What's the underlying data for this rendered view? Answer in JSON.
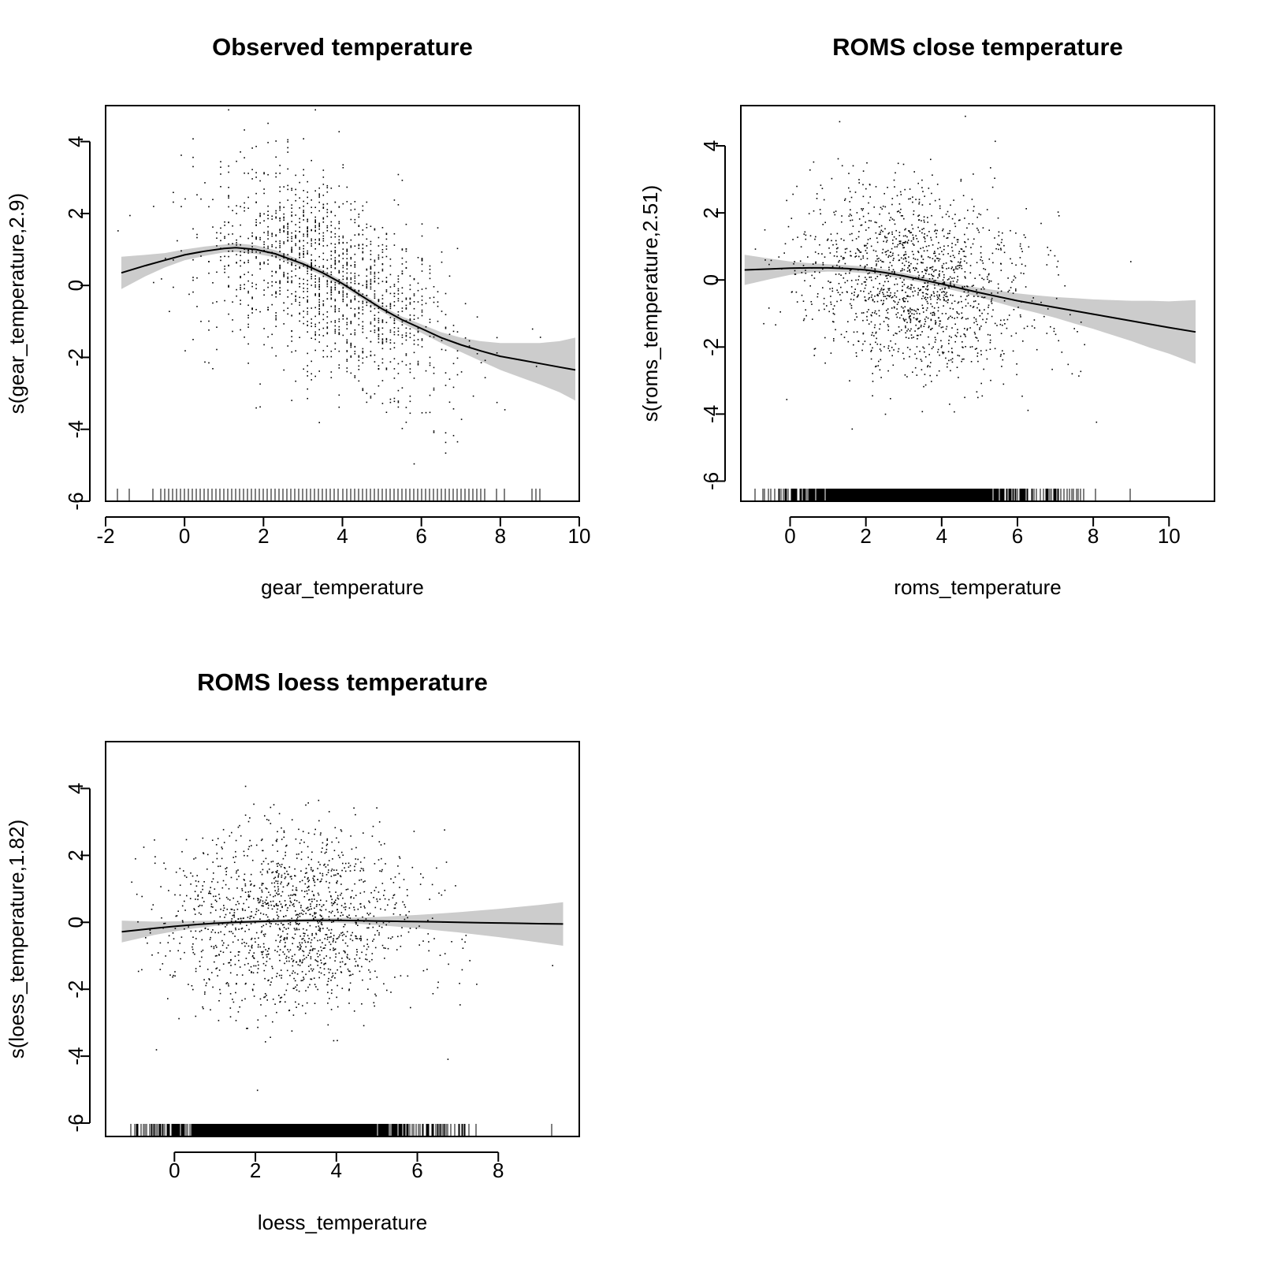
{
  "chart_data": [
    {
      "type": "line",
      "title": "Observed temperature",
      "xlabel": "gear_temperature",
      "ylabel": "s(gear_temperature,2.9)",
      "xlim": [
        -2,
        10
      ],
      "ylim": [
        -6,
        5
      ],
      "xticks": [
        "-2",
        "0",
        "2",
        "4",
        "6",
        "8",
        "10"
      ],
      "yticks": [
        "-6",
        "-4",
        "-2",
        "0",
        "2",
        "4"
      ],
      "xtick_values": [
        -2,
        0,
        2,
        4,
        6,
        8,
        10
      ],
      "ytick_values": [
        -6,
        -4,
        -2,
        0,
        2,
        4
      ],
      "series": [
        {
          "x": [
            -1.6,
            -1.0,
            -0.5,
            0.0,
            0.5,
            1.0,
            1.3,
            1.8,
            2.3,
            3.0,
            3.5,
            4.0,
            4.5,
            5.0,
            5.5,
            6.0,
            6.5,
            7.0,
            7.5,
            8.0,
            8.5,
            9.0,
            9.5,
            9.9
          ],
          "y": [
            0.35,
            0.55,
            0.7,
            0.85,
            0.95,
            1.03,
            1.05,
            1.0,
            0.88,
            0.6,
            0.35,
            0.05,
            -0.3,
            -0.65,
            -0.95,
            -1.2,
            -1.45,
            -1.65,
            -1.82,
            -1.97,
            -2.07,
            -2.17,
            -2.27,
            -2.35
          ]
        }
      ],
      "confidence_band": {
        "x": [
          -1.6,
          -1.0,
          -0.5,
          0.0,
          0.5,
          1.0,
          1.3,
          1.8,
          2.3,
          3.0,
          3.5,
          4.0,
          4.5,
          5.0,
          5.5,
          6.0,
          6.5,
          7.0,
          7.5,
          8.0,
          8.5,
          9.0,
          9.5,
          9.9
        ],
        "lower": [
          -0.1,
          0.25,
          0.5,
          0.7,
          0.82,
          0.92,
          0.93,
          0.88,
          0.78,
          0.52,
          0.27,
          -0.03,
          -0.38,
          -0.73,
          -1.04,
          -1.32,
          -1.6,
          -1.85,
          -2.1,
          -2.35,
          -2.55,
          -2.75,
          -2.97,
          -3.2
        ],
        "upper": [
          0.8,
          0.85,
          0.9,
          1.0,
          1.08,
          1.14,
          1.17,
          1.12,
          0.98,
          0.68,
          0.43,
          0.13,
          -0.22,
          -0.57,
          -0.86,
          -1.08,
          -1.3,
          -1.45,
          -1.55,
          -1.6,
          -1.6,
          -1.6,
          -1.55,
          -1.45
        ]
      },
      "scatter": {
        "n": 1500,
        "x_mean": 3.6,
        "x_sd": 1.6,
        "y_sd": 1.3,
        "x_range": [
          -1.8,
          9.8
        ],
        "y_range": [
          -5.2,
          4.9
        ]
      }
    },
    {
      "type": "line",
      "title": "ROMS close temperature",
      "xlabel": "roms_temperature",
      "ylabel": "s(roms_temperature,2.51)",
      "xlim": [
        -1.3,
        11.2
      ],
      "ylim": [
        -6.6,
        5.2
      ],
      "xticks": [
        "0",
        "2",
        "4",
        "6",
        "8",
        "10"
      ],
      "yticks": [
        "-6",
        "-4",
        "-2",
        "0",
        "2",
        "4"
      ],
      "xtick_values": [
        0,
        2,
        4,
        6,
        8,
        10
      ],
      "ytick_values": [
        -6,
        -4,
        -2,
        0,
        2,
        4
      ],
      "series": [
        {
          "x": [
            -1.2,
            -0.5,
            0.0,
            0.5,
            1.0,
            1.5,
            2.0,
            2.5,
            3.0,
            3.5,
            4.0,
            4.5,
            5.0,
            5.5,
            6.0,
            6.5,
            7.0,
            7.5,
            8.0,
            8.5,
            9.0,
            9.5,
            10.0,
            10.7
          ],
          "y": [
            0.3,
            0.33,
            0.35,
            0.36,
            0.36,
            0.34,
            0.3,
            0.22,
            0.12,
            0.0,
            -0.12,
            -0.25,
            -0.38,
            -0.5,
            -0.62,
            -0.72,
            -0.82,
            -0.92,
            -1.02,
            -1.12,
            -1.22,
            -1.32,
            -1.42,
            -1.55
          ]
        }
      ],
      "confidence_band": {
        "x": [
          -1.2,
          -0.5,
          0.0,
          0.5,
          1.0,
          1.5,
          2.0,
          2.5,
          3.0,
          3.5,
          4.0,
          4.5,
          5.0,
          5.5,
          6.0,
          6.5,
          7.0,
          7.5,
          8.0,
          8.5,
          9.0,
          9.5,
          10.0,
          10.7
        ],
        "lower": [
          -0.15,
          0.03,
          0.15,
          0.22,
          0.25,
          0.24,
          0.2,
          0.13,
          0.03,
          -0.08,
          -0.22,
          -0.36,
          -0.52,
          -0.68,
          -0.84,
          -0.98,
          -1.13,
          -1.3,
          -1.46,
          -1.64,
          -1.82,
          -2.02,
          -2.2,
          -2.5
        ],
        "upper": [
          0.75,
          0.63,
          0.55,
          0.5,
          0.47,
          0.44,
          0.4,
          0.31,
          0.21,
          0.08,
          -0.02,
          -0.14,
          -0.24,
          -0.32,
          -0.4,
          -0.46,
          -0.51,
          -0.54,
          -0.58,
          -0.6,
          -0.62,
          -0.62,
          -0.64,
          -0.6
        ]
      },
      "scatter": {
        "n": 1500,
        "x_mean": 3.3,
        "x_sd": 1.5,
        "y_sd": 1.4,
        "x_range": [
          -1.2,
          10.7
        ],
        "y_range": [
          -4.9,
          4.9
        ]
      }
    },
    {
      "type": "line",
      "title": "ROMS loess temperature",
      "xlabel": "loess_temperature",
      "ylabel": "s(loess_temperature,1.82)",
      "xlim": [
        -1.7,
        10.0
      ],
      "ylim": [
        -6.4,
        5.4
      ],
      "xticks": [
        "0",
        "2",
        "4",
        "6",
        "8"
      ],
      "yticks": [
        "-6",
        "-4",
        "-2",
        "0",
        "2",
        "4"
      ],
      "xtick_values": [
        0,
        2,
        4,
        6,
        8
      ],
      "ytick_values": [
        -6,
        -4,
        -2,
        0,
        2,
        4
      ],
      "series": [
        {
          "x": [
            -1.3,
            -0.5,
            0.0,
            0.5,
            1.0,
            1.5,
            2.0,
            2.5,
            3.0,
            3.5,
            4.0,
            4.5,
            5.0,
            5.5,
            6.0,
            6.5,
            7.0,
            7.5,
            8.0,
            8.5,
            9.0,
            9.6
          ],
          "y": [
            -0.28,
            -0.18,
            -0.12,
            -0.07,
            -0.03,
            0.0,
            0.02,
            0.04,
            0.05,
            0.06,
            0.06,
            0.05,
            0.04,
            0.03,
            0.02,
            0.01,
            0.0,
            -0.01,
            -0.02,
            -0.03,
            -0.04,
            -0.05
          ]
        }
      ],
      "confidence_band": {
        "x": [
          -1.3,
          -0.5,
          0.0,
          0.5,
          1.0,
          1.5,
          2.0,
          2.5,
          3.0,
          3.5,
          4.0,
          4.5,
          5.0,
          5.5,
          6.0,
          6.5,
          7.0,
          7.5,
          8.0,
          8.5,
          9.0,
          9.6
        ],
        "lower": [
          -0.6,
          -0.38,
          -0.27,
          -0.18,
          -0.11,
          -0.06,
          -0.03,
          -0.01,
          0.0,
          0.0,
          -0.01,
          -0.04,
          -0.08,
          -0.13,
          -0.18,
          -0.24,
          -0.3,
          -0.37,
          -0.44,
          -0.52,
          -0.6,
          -0.7
        ],
        "upper": [
          0.05,
          0.02,
          0.03,
          0.04,
          0.05,
          0.06,
          0.07,
          0.09,
          0.1,
          0.12,
          0.13,
          0.14,
          0.16,
          0.19,
          0.22,
          0.26,
          0.3,
          0.35,
          0.4,
          0.46,
          0.52,
          0.6
        ]
      },
      "scatter": {
        "n": 1500,
        "x_mean": 2.9,
        "x_sd": 1.5,
        "y_sd": 1.35,
        "x_range": [
          -1.2,
          9.6
        ],
        "y_range": [
          -5.0,
          5.2
        ]
      }
    }
  ]
}
